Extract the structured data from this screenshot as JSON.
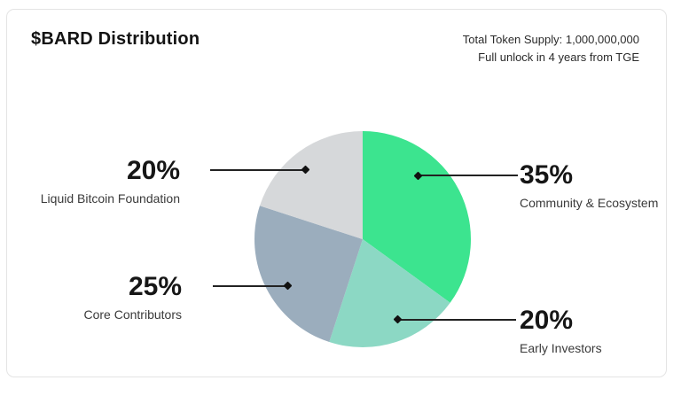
{
  "header": {
    "title": "$BARD Distribution",
    "supply_line": "Total Token Supply: 1,000,000,000",
    "unlock_line": "Full unlock in 4 years from TGE"
  },
  "chart_data": {
    "type": "pie",
    "title": "$BARD Distribution",
    "categories": [
      "Community & Ecosystem",
      "Early Investors",
      "Core Contributors",
      "Liquid Bitcoin Foundation"
    ],
    "values": [
      35,
      20,
      25,
      20
    ],
    "value_labels": [
      "35%",
      "20%",
      "25%",
      "20%"
    ],
    "colors": [
      "#3ce48f",
      "#8cd8c4",
      "#9badbd",
      "#d6d8da"
    ],
    "start_angle_deg": 0,
    "direction": "clockwise",
    "legend_position": "callout-labels",
    "annotations": [
      "Total Token Supply: 1,000,000,000",
      "Full unlock in 4 years from TGE"
    ]
  }
}
